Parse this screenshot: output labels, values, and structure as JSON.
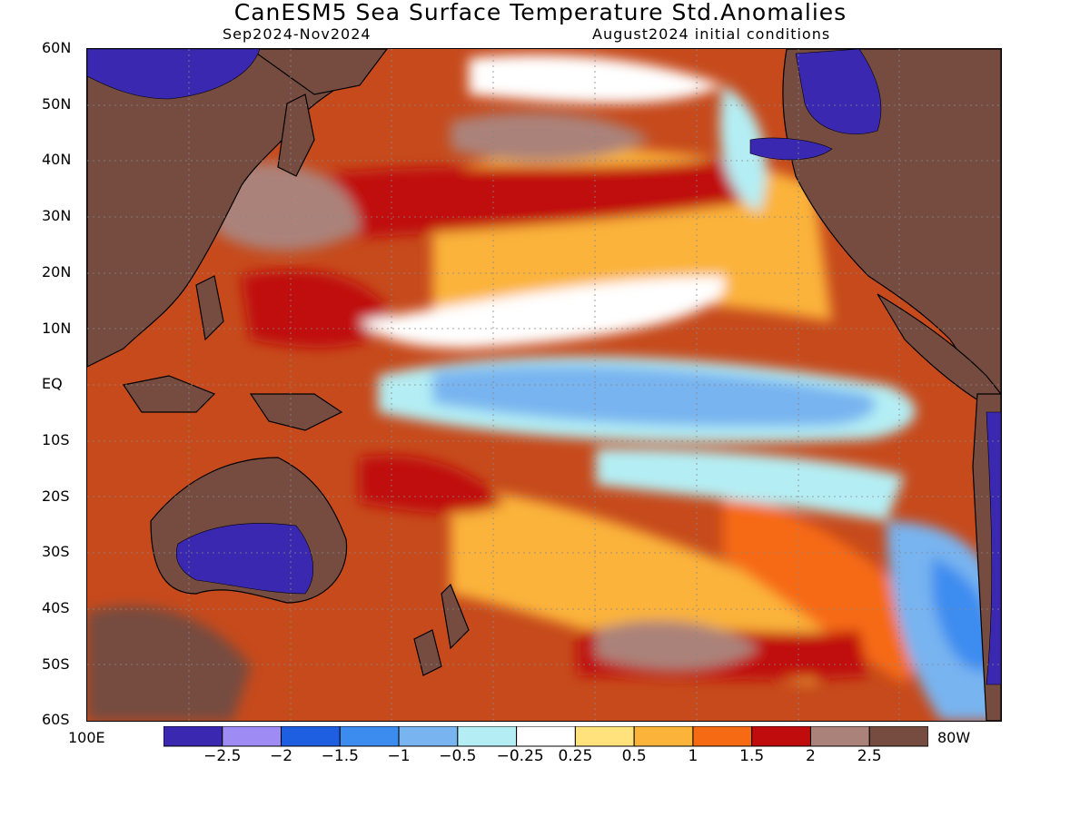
{
  "title": "CanESM5 Sea Surface Temperature Std.Anomalies",
  "subtitle_left": "Sep2024-Nov2024",
  "subtitle_right": "August2024 initial conditions",
  "lat_labels": [
    "60N",
    "50N",
    "40N",
    "30N",
    "20N",
    "10N",
    "EQ",
    "10S",
    "20S",
    "30S",
    "40S",
    "50S",
    "60S"
  ],
  "lon_labels": {
    "left": "100E",
    "right": "80W"
  },
  "colorbar": {
    "labels": [
      "-2.5",
      "-2",
      "-1.5",
      "-1",
      "-0.5",
      "-0.25",
      "0.25",
      "0.5",
      "1",
      "1.5",
      "2",
      "2.5"
    ],
    "colors": [
      "#3a28b0",
      "#9e8cf4",
      "#1e5ee0",
      "#3c8cf0",
      "#78b4f0",
      "#b4eef4",
      "#ffffff",
      "#ffe27c",
      "#fbb33a",
      "#f66a14",
      "#c00c0c",
      "#ab8279",
      "#764c40"
    ]
  },
  "land_color": "#764c40"
}
